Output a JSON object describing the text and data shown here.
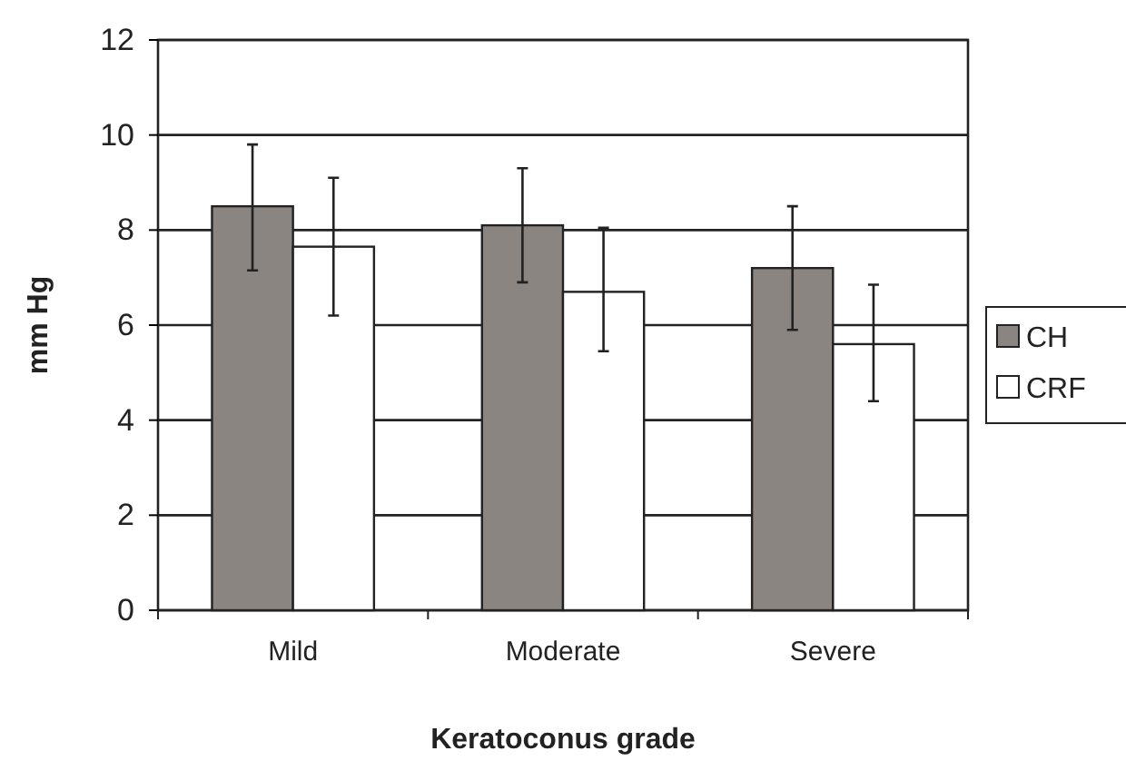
{
  "chart_data": {
    "type": "bar",
    "xlabel": "Keratoconus grade",
    "ylabel": "mm Hg",
    "categories": [
      "Mild",
      "Moderate",
      "Severe"
    ],
    "series": [
      {
        "name": "CH",
        "color": "#8a8580",
        "values": [
          8.5,
          8.1,
          7.2
        ],
        "errors": [
          [
            7.15,
            9.8
          ],
          [
            6.9,
            9.3
          ],
          [
            5.9,
            8.5
          ]
        ]
      },
      {
        "name": "CRF",
        "color": "#ffffff",
        "values": [
          7.65,
          6.7,
          5.6
        ],
        "errors": [
          [
            6.2,
            9.1
          ],
          [
            5.45,
            8.05
          ],
          [
            4.4,
            6.85
          ]
        ]
      }
    ],
    "ylim": [
      0,
      12
    ],
    "yticks": [
      0,
      2,
      4,
      6,
      8,
      10,
      12
    ],
    "grid": "y",
    "legend": "right"
  }
}
